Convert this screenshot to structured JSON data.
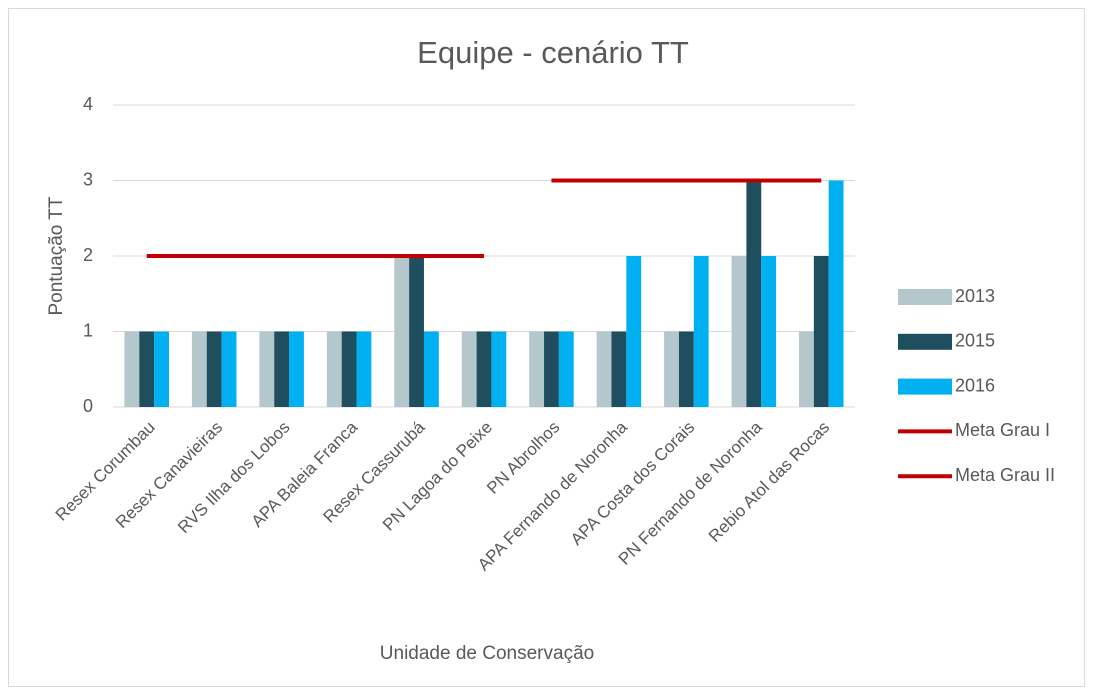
{
  "chart_data": {
    "type": "bar",
    "title": "Equipe - cenário TT",
    "x_label": "Unidade de Conservação",
    "y_label": "Pontuação TT",
    "categories": [
      "Resex Corumbau",
      "Resex Canavieiras",
      "RVS Ilha dos Lobos",
      "APA Baleia Franca",
      "Resex Cassurubá",
      "PN Lagoa do Peixe",
      "PN Abrolhos",
      "APA Fernando de Noronha",
      "APA Costa dos Corais",
      "PN Fernando de Noronha",
      "Rebio Atol das Rocas"
    ],
    "series": [
      {
        "name": "2013",
        "type": "bar",
        "color": "#b4c7cc",
        "values": [
          1,
          1,
          1,
          1,
          2,
          1,
          1,
          1,
          1,
          2,
          1
        ]
      },
      {
        "name": "2015",
        "type": "bar",
        "color": "#1f4e5f",
        "values": [
          1,
          1,
          1,
          1,
          2,
          1,
          1,
          1,
          1,
          3,
          2
        ]
      },
      {
        "name": "2016",
        "type": "bar",
        "color": "#00b0f0",
        "values": [
          1,
          1,
          1,
          1,
          1,
          1,
          1,
          2,
          2,
          2,
          3
        ]
      },
      {
        "name": "Meta Grau I",
        "type": "line",
        "color": "#c00000",
        "values": [
          2,
          2,
          2,
          2,
          2,
          2,
          null,
          null,
          null,
          null,
          null
        ]
      },
      {
        "name": "Meta Grau II",
        "type": "line",
        "color": "#c00000",
        "values": [
          null,
          null,
          null,
          null,
          null,
          null,
          3,
          3,
          3,
          3,
          3
        ]
      }
    ],
    "ylim": [
      0,
      4
    ],
    "yticks": [
      0,
      1,
      2,
      3,
      4
    ],
    "grid": true,
    "legend": "right"
  }
}
